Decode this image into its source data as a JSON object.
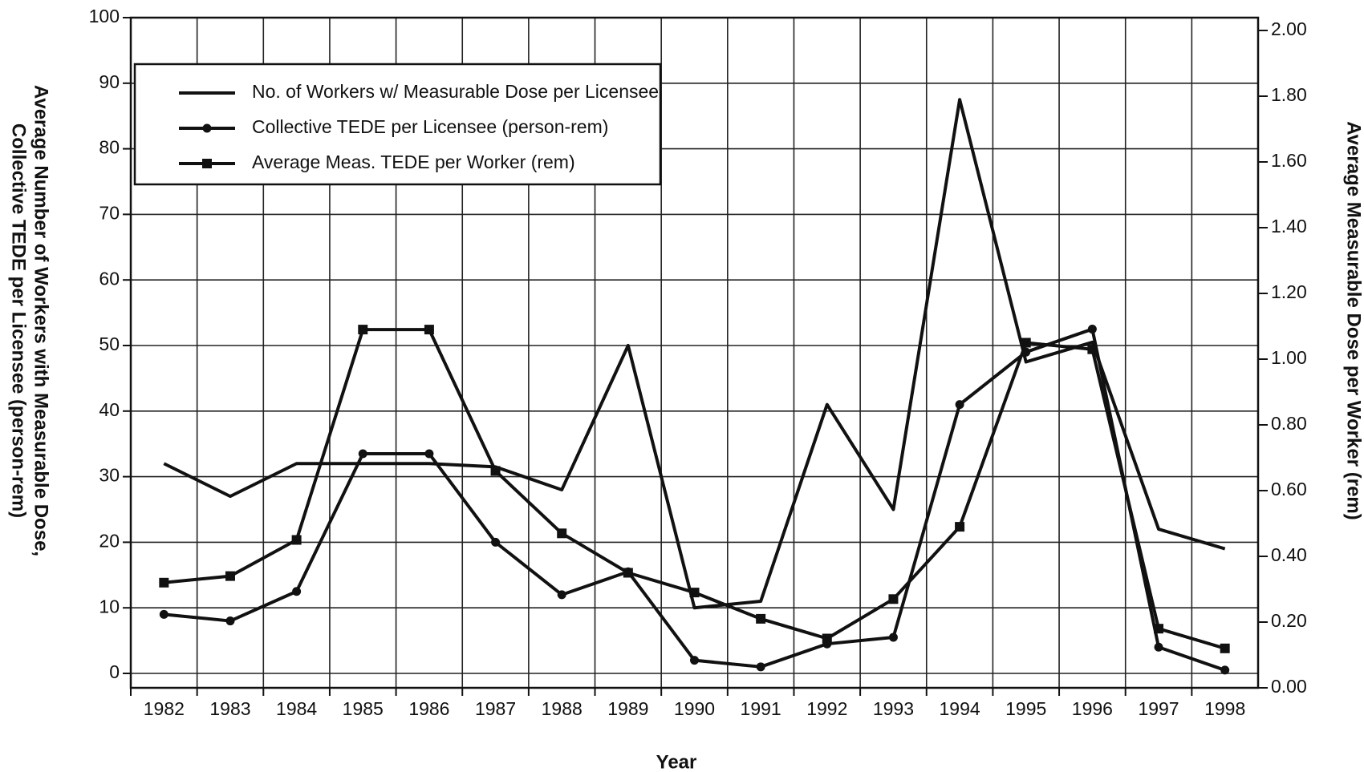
{
  "chart_data": {
    "type": "line",
    "x_label": "Year",
    "y_label": [
      "Average Number of Workers with Measurable Dose,",
      "Collective TEDE per Licensee (person-rem)"
    ],
    "y2_label": "Average Measurable Dose per Worker (rem)",
    "categories": [
      "1982",
      "1983",
      "1984",
      "1985",
      "1986",
      "1987",
      "1988",
      "1989",
      "1990",
      "1991",
      "1992",
      "1993",
      "1994",
      "1995",
      "1996",
      "1997",
      "1998"
    ],
    "series": [
      {
        "name": "No. of Workers w/ Measurable Dose per Licensee",
        "color": "#111111",
        "marker": "none",
        "axis": "y",
        "values": [
          32,
          27,
          32,
          32,
          32,
          31.5,
          28,
          50,
          10,
          11,
          41,
          25,
          87.5,
          47.5,
          50.5,
          22,
          19
        ]
      },
      {
        "name": "Collective TEDE per Licensee (person-rem)",
        "color": "#111111",
        "marker": "circle",
        "axis": "y",
        "values": [
          9,
          8,
          12.5,
          33.5,
          33.5,
          20,
          12,
          15.5,
          2,
          1,
          4.5,
          5.5,
          41,
          49,
          52.5,
          4,
          0.5
        ]
      },
      {
        "name": "Average Meas. TEDE per Worker (rem)",
        "color": "#111111",
        "marker": "square",
        "axis": "y2",
        "values": [
          0.32,
          0.34,
          0.45,
          1.09,
          1.09,
          0.66,
          0.47,
          0.35,
          0.29,
          0.21,
          0.15,
          0.27,
          0.49,
          1.05,
          1.03,
          0.18,
          0.12
        ]
      }
    ],
    "ylim": [
      0,
      100
    ],
    "yticks": [
      0,
      10,
      20,
      30,
      40,
      50,
      60,
      70,
      80,
      90,
      100
    ],
    "y2lim": [
      0,
      2
    ],
    "y2ticks": [
      {
        "value": 0,
        "label": "0.00"
      },
      {
        "value": 0.2,
        "label": "0.20"
      },
      {
        "value": 0.4,
        "label": "0.40"
      },
      {
        "value": 0.6,
        "label": "0.60"
      },
      {
        "value": 0.8,
        "label": "0.80"
      },
      {
        "value": 1,
        "label": "1.00"
      },
      {
        "value": 1.2,
        "label": "1.20"
      },
      {
        "value": 1.4,
        "label": "1.40"
      },
      {
        "value": 1.6,
        "label": "1.60"
      },
      {
        "value": 1.8,
        "label": "1.80"
      },
      {
        "value": 2,
        "label": "2.00"
      }
    ],
    "grid": true,
    "legend": "upper left"
  }
}
